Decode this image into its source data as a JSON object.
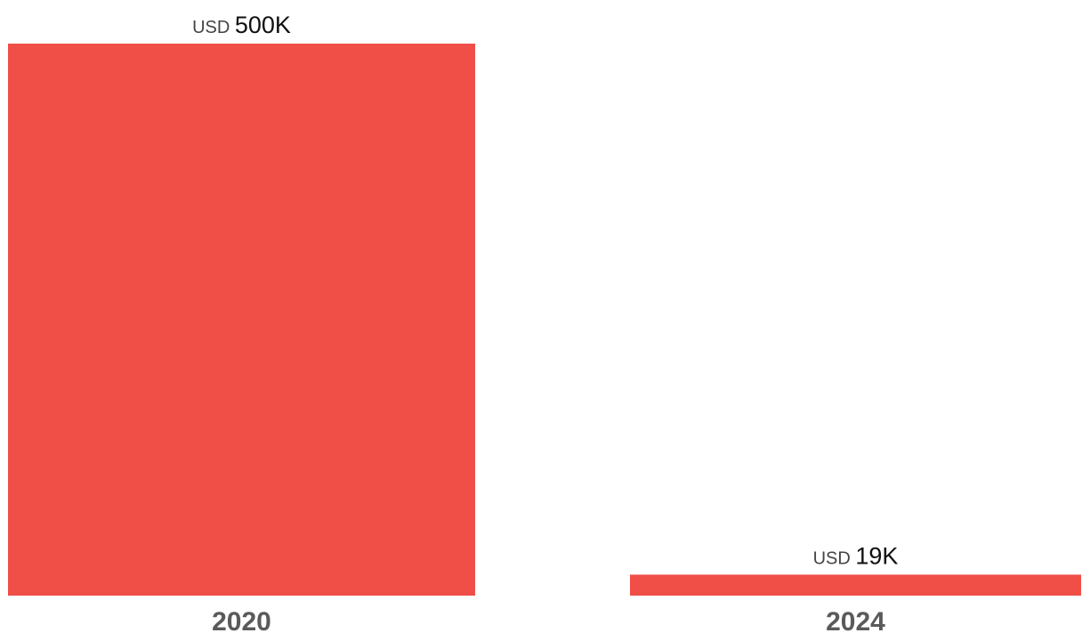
{
  "chart_data": {
    "type": "bar",
    "categories": [
      "2020",
      "2024"
    ],
    "values": [
      500000,
      19000
    ],
    "value_labels": [
      {
        "prefix": "USD",
        "amount": "500K"
      },
      {
        "prefix": "USD",
        "amount": "19K"
      }
    ],
    "title": "",
    "xlabel": "",
    "ylabel": "",
    "ylim": [
      0,
      500000
    ],
    "grid": false,
    "legend": "none",
    "colors": {
      "bar": "#ef4f47",
      "category_label": "#5a5a5a",
      "value_text": "#111111"
    }
  }
}
